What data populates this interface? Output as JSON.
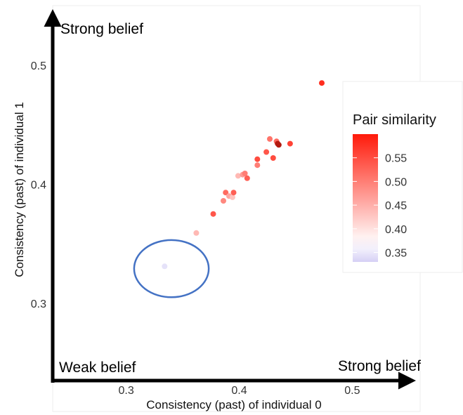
{
  "chart_data": {
    "type": "scatter",
    "xlabel": "Consistency (past) of individual 0",
    "ylabel": "Consistency (past) of individual 1",
    "xlim": [
      0.235,
      0.56
    ],
    "ylim": [
      0.235,
      0.55
    ],
    "x_ticks": [
      0.3,
      0.4,
      0.5
    ],
    "x_tick_labels": [
      "0.3",
      "0.4",
      "0.5"
    ],
    "y_ticks": [
      0.3,
      0.4,
      0.5
    ],
    "y_tick_labels": [
      "0.3",
      "0.4",
      "0.5"
    ],
    "grid": false,
    "annotations": {
      "y_top": "Strong belief",
      "origin": "Weak belief",
      "x_right": "Strong belief"
    },
    "highlight_ellipse": {
      "cx": 0.34,
      "cy": 0.329,
      "rx": 0.033,
      "ry": 0.024,
      "color": "#4472c4"
    },
    "color_scale": {
      "title": "Pair similarity",
      "min": 0.33,
      "max": 0.6,
      "low_color": "#d6d0f5",
      "mid_color": "#ffffff",
      "high_color": "#ff1a0a",
      "ticks": [
        0.35,
        0.4,
        0.45,
        0.5,
        0.55
      ],
      "tick_labels": [
        "0.35",
        "0.40",
        "0.45",
        "0.50",
        "0.55"
      ],
      "legend_position": "right"
    },
    "points": [
      {
        "x": 0.334,
        "y": 0.331,
        "s": 0.345
      },
      {
        "x": 0.345,
        "y": 0.342,
        "s": 0.37
      },
      {
        "x": 0.362,
        "y": 0.359,
        "s": 0.44
      },
      {
        "x": 0.377,
        "y": 0.375,
        "s": 0.54
      },
      {
        "x": 0.386,
        "y": 0.386,
        "s": 0.49
      },
      {
        "x": 0.388,
        "y": 0.393,
        "s": 0.52
      },
      {
        "x": 0.391,
        "y": 0.39,
        "s": 0.46
      },
      {
        "x": 0.394,
        "y": 0.389,
        "s": 0.43
      },
      {
        "x": 0.395,
        "y": 0.393,
        "s": 0.53
      },
      {
        "x": 0.399,
        "y": 0.407,
        "s": 0.44
      },
      {
        "x": 0.403,
        "y": 0.408,
        "s": 0.47
      },
      {
        "x": 0.405,
        "y": 0.409,
        "s": 0.5
      },
      {
        "x": 0.407,
        "y": 0.405,
        "s": 0.53
      },
      {
        "x": 0.416,
        "y": 0.416,
        "s": 0.5
      },
      {
        "x": 0.416,
        "y": 0.421,
        "s": 0.55
      },
      {
        "x": 0.424,
        "y": 0.427,
        "s": 0.54
      },
      {
        "x": 0.427,
        "y": 0.438,
        "s": 0.51
      },
      {
        "x": 0.43,
        "y": 0.422,
        "s": 0.55
      },
      {
        "x": 0.433,
        "y": 0.436,
        "s": 0.52
      },
      {
        "x": 0.434,
        "y": 0.434,
        "s": 0.59
      },
      {
        "x": 0.435,
        "y": 0.433,
        "s": 0.6
      },
      {
        "x": 0.445,
        "y": 0.434,
        "s": 0.56
      },
      {
        "x": 0.473,
        "y": 0.485,
        "s": 0.58
      }
    ]
  }
}
